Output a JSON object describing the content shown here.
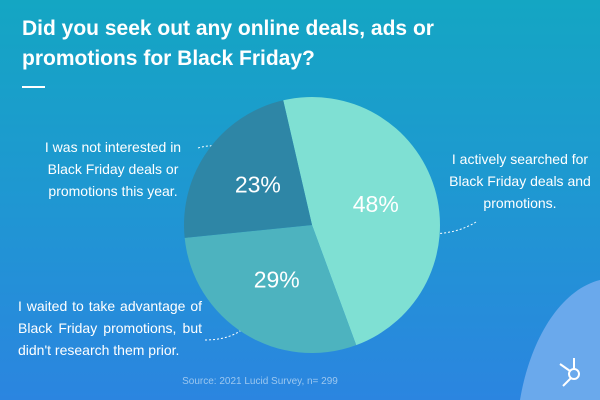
{
  "chart_data": {
    "type": "pie",
    "title": "Did you seek out any online deals, ads or promotions for Black Friday?",
    "categories": [
      "I actively searched for Black Friday deals and promotions.",
      "I waited to take advantage of Black Friday promotions, but didn't research them prior.",
      "I was not interested in Black Friday deals or promotions this year."
    ],
    "values": [
      48,
      29,
      23
    ],
    "value_labels": [
      "48%",
      "29%",
      "23%"
    ],
    "colors": [
      "#7fe0d3",
      "#4db3bf",
      "#2e86a6"
    ],
    "source": "Source: 2021 Lucid Survey, n= 299"
  }
}
